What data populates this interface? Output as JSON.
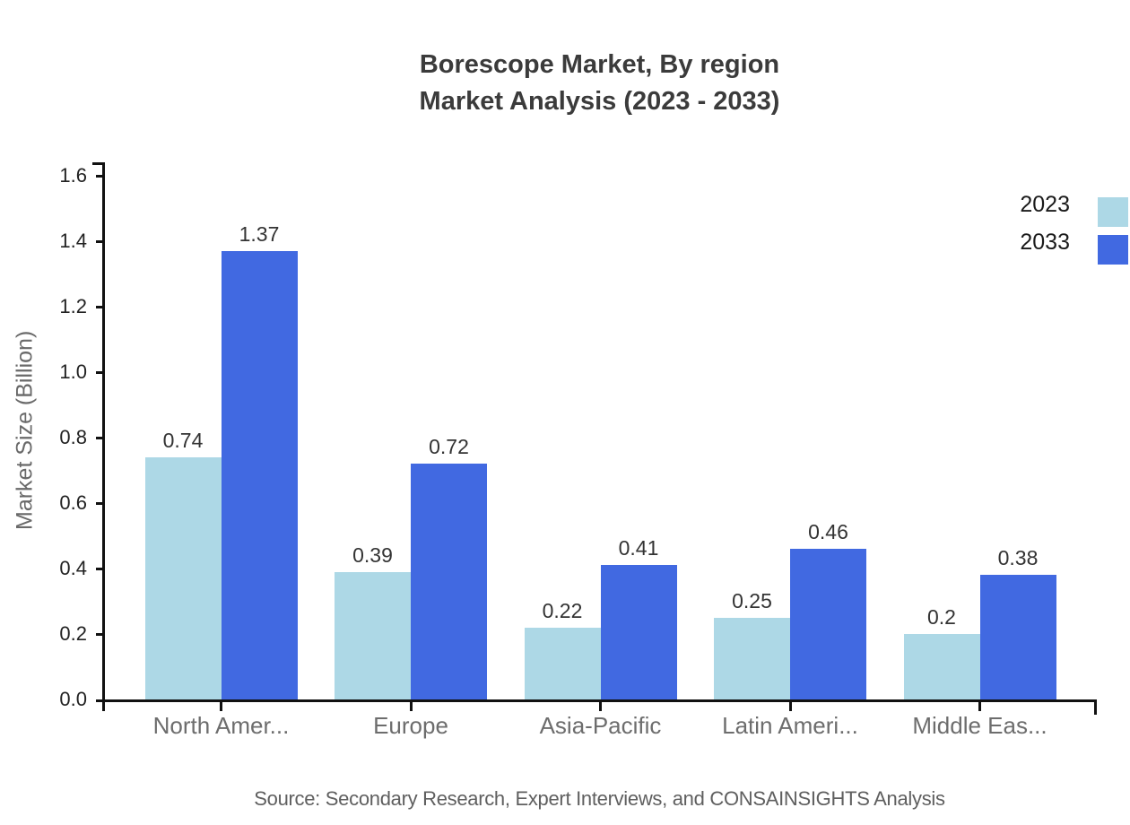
{
  "title": {
    "line1": "Borescope Market, By region",
    "line2": "Market Analysis (2023 - 2033)"
  },
  "source": "Source: Secondary Research, Expert Interviews, and CONSAINSIGHTS Analysis",
  "colors": {
    "series_2023": "#ADD8E6",
    "series_2033": "#4169E1",
    "axis": "#111111",
    "title_text": "#3b3b3b",
    "axis_label_text": "#6d6d6d",
    "value_label_text": "#333333"
  },
  "chart_data": {
    "type": "bar",
    "title": "Borescope Market, By region Market Analysis (2023 - 2033)",
    "categories": [
      "North Amer...",
      "Europe",
      "Asia-Pacific",
      "Latin Ameri...",
      "Middle Eas..."
    ],
    "series": [
      {
        "name": "2023",
        "color": "#ADD8E6",
        "values": [
          0.74,
          0.39,
          0.22,
          0.25,
          0.2
        ]
      },
      {
        "name": "2033",
        "color": "#4169E1",
        "values": [
          1.37,
          0.72,
          0.41,
          0.46,
          0.38
        ]
      }
    ],
    "xlabel": "",
    "ylabel": "Market Size (Billion)",
    "ylim": [
      0,
      1.6
    ],
    "ytick_step": 0.2,
    "yticks": [
      "0.0",
      "0.2",
      "0.4",
      "0.6",
      "0.8",
      "1.0",
      "1.2",
      "1.4",
      "1.6"
    ],
    "grid": false,
    "value_labels": true,
    "legend_position": "top-right"
  },
  "legend": {
    "items": [
      {
        "label": "2023",
        "color": "#ADD8E6"
      },
      {
        "label": "2033",
        "color": "#4169E1"
      }
    ]
  }
}
